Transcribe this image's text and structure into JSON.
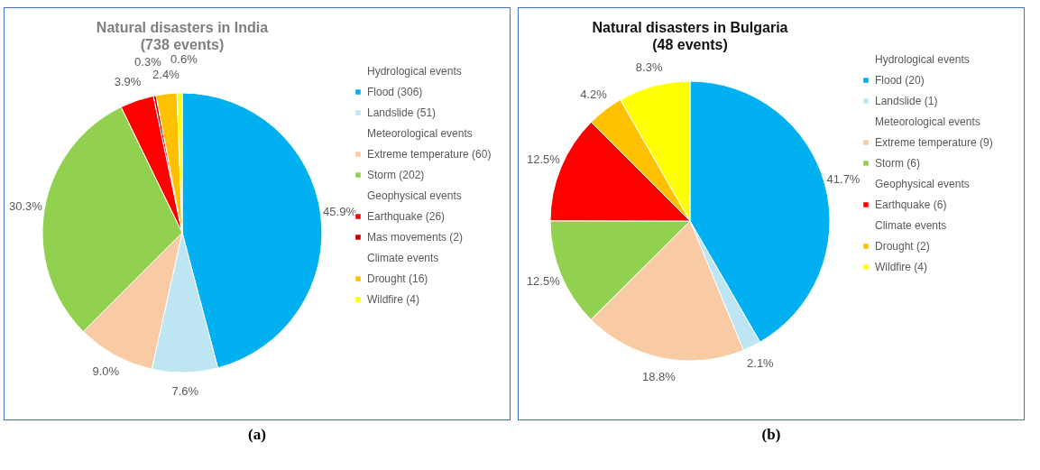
{
  "chart_data": [
    {
      "type": "pie",
      "title": "Natural disasters in India",
      "subtitle": "(738 events)",
      "categories": [
        "Flood (306)",
        "Landslide (51)",
        "Extreme temperature (60)",
        "Storm (202)",
        "Earthquake (26)",
        "Mas movements (2)",
        "Drought (16)",
        "Wildfire (4)"
      ],
      "values": [
        45.9,
        7.6,
        9.0,
        30.3,
        3.9,
        0.3,
        2.4,
        0.6
      ],
      "colors": [
        "#00b0f0",
        "#bde5f2",
        "#f8cba4",
        "#92d050",
        "#ff0000",
        "#c00000",
        "#ffc000",
        "#ffff00"
      ],
      "value_labels": [
        "45.9%",
        "7.6%",
        "9.0%",
        "30.3%",
        "3.9%",
        "0.3%",
        "2.4%",
        "0.6%"
      ],
      "legend": "right",
      "annotations": [
        "Hydrological events",
        "Meteorological events",
        "Geophysical events",
        "Climate events",
        "(a)"
      ]
    },
    {
      "type": "pie",
      "title": "Natural disasters in Bulgaria",
      "subtitle": "(48 events)",
      "categories": [
        "Flood (20)",
        "Landslide (1)",
        "Extreme temperature (9)",
        "Storm (6)",
        "Earthquake (6)",
        "Drought (2)",
        "Wildfire (4)"
      ],
      "values": [
        41.7,
        2.1,
        18.8,
        12.5,
        12.5,
        4.2,
        8.3
      ],
      "colors": [
        "#00b0f0",
        "#bde5f2",
        "#f8cba4",
        "#92d050",
        "#ff0000",
        "#ffc000",
        "#ffff00"
      ],
      "value_labels": [
        "41.7%",
        "2.1%",
        "18.8%",
        "12.5%",
        "12.5%",
        "4.2%",
        "8.3%"
      ],
      "legend": "right",
      "annotations": [
        "Hydrological events",
        "Meteorological events",
        "Geophysical events",
        "Climate events",
        "(b)"
      ]
    }
  ]
}
